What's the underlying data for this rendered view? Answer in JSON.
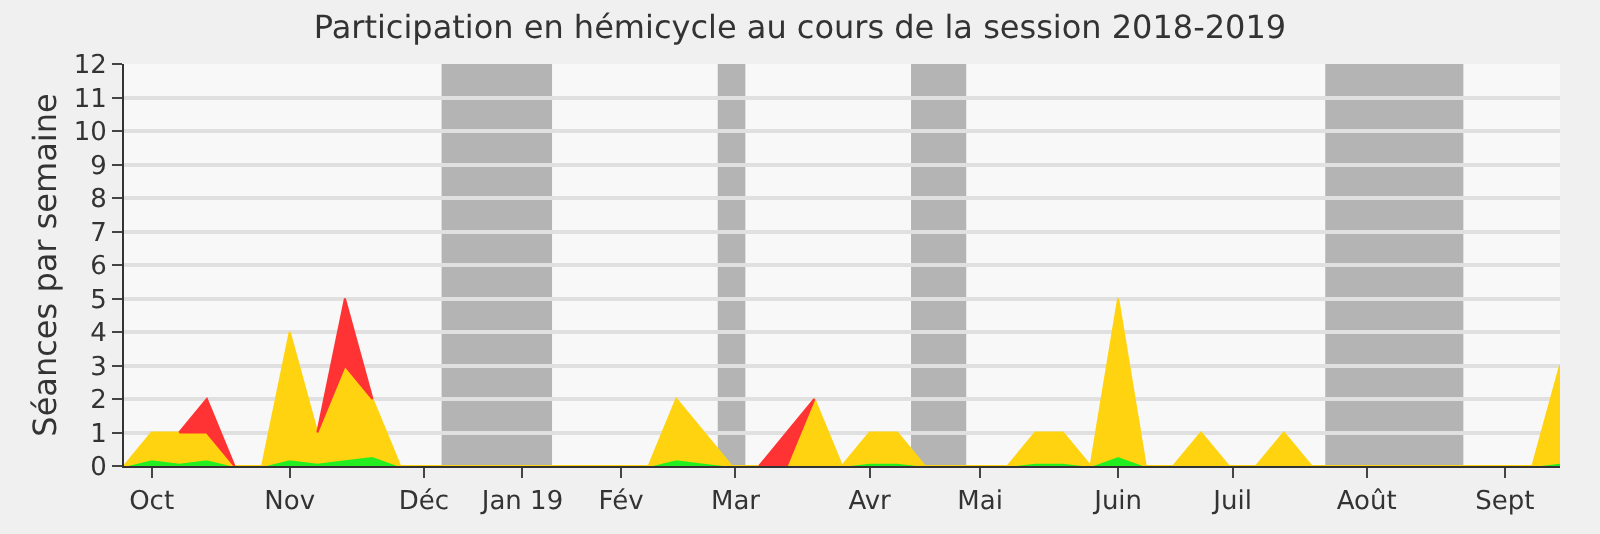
{
  "chart_data": {
    "type": "area",
    "title": "Participation en hémicycle au cours de la session 2018-2019",
    "ylabel": "Séances par semaine",
    "x": [
      "2018-10-01",
      "2018-10-08",
      "2018-10-15",
      "2018-10-22",
      "2018-10-29",
      "2018-11-05",
      "2018-11-12",
      "2018-11-19",
      "2018-11-26",
      "2018-12-03",
      "2018-12-10",
      "2018-12-17",
      "2018-12-24",
      "2018-12-31",
      "2019-01-07",
      "2019-01-14",
      "2019-01-21",
      "2019-01-28",
      "2019-02-04",
      "2019-02-11",
      "2019-02-18",
      "2019-02-25",
      "2019-03-04",
      "2019-03-11",
      "2019-03-18",
      "2019-03-25",
      "2019-04-01",
      "2019-04-08",
      "2019-04-15",
      "2019-04-22",
      "2019-04-29",
      "2019-05-06",
      "2019-05-13",
      "2019-05-20",
      "2019-05-27",
      "2019-06-03",
      "2019-06-10",
      "2019-06-17",
      "2019-06-24",
      "2019-07-01",
      "2019-07-08",
      "2019-07-15",
      "2019-07-22",
      "2019-07-29",
      "2019-08-05",
      "2019-08-12",
      "2019-08-19",
      "2019-08-26",
      "2019-09-02",
      "2019-09-09",
      "2019-09-16",
      "2019-09-23",
      "2019-09-30"
    ],
    "stacked": true,
    "series": [
      {
        "color": "#22ee22",
        "values": [
          0,
          0.2,
          0.1,
          0.2,
          0,
          0,
          0.2,
          0.1,
          0.2,
          0.3,
          0,
          0,
          0,
          0,
          0,
          0,
          0,
          0,
          0,
          0,
          0.2,
          0.1,
          0,
          0,
          0,
          0,
          0,
          0.1,
          0.1,
          0,
          0,
          0,
          0,
          0.1,
          0.1,
          0,
          0.3,
          0,
          0,
          0,
          0,
          0,
          0,
          0,
          0,
          0,
          0,
          0,
          0,
          0,
          0,
          0,
          0.1
        ]
      },
      {
        "color": "#ffd30f",
        "values": [
          0,
          0.8,
          0.9,
          0.8,
          0,
          0,
          3.8,
          0.9,
          2.8,
          1.7,
          0,
          0,
          0,
          0,
          0,
          0,
          0,
          0,
          0,
          0,
          1.8,
          0.9,
          0,
          0,
          0,
          2,
          0,
          0.9,
          0.9,
          0,
          0,
          0,
          0,
          0.9,
          0.9,
          0,
          4.7,
          0,
          0,
          1,
          0,
          0,
          1,
          0,
          0,
          0,
          0,
          0,
          0,
          0,
          0,
          0,
          2.9
        ]
      },
      {
        "color": "#ff3333",
        "values": [
          null,
          null,
          0,
          1,
          0,
          null,
          null,
          0,
          2,
          0,
          null,
          null,
          null,
          null,
          null,
          null,
          null,
          null,
          null,
          null,
          null,
          null,
          null,
          0,
          1,
          0,
          null,
          null,
          null,
          null,
          null,
          null,
          null,
          null,
          null,
          null,
          null,
          null,
          null,
          null,
          null,
          null,
          null,
          null,
          null,
          null,
          null,
          null,
          null,
          null,
          null,
          null,
          null
        ]
      }
    ],
    "xlim": [
      "2018-10-01",
      "2019-09-30"
    ],
    "xticks": [
      {
        "value": "2018-10-08",
        "label": "Oct"
      },
      {
        "value": "2018-11-12",
        "label": "Nov"
      },
      {
        "value": "2018-12-16",
        "label": "Déc"
      },
      {
        "value": "2019-01-10",
        "label": "Jan 19"
      },
      {
        "value": "2019-02-04",
        "label": "Fév"
      },
      {
        "value": "2019-03-05",
        "label": "Mar"
      },
      {
        "value": "2019-04-08",
        "label": "Avr"
      },
      {
        "value": "2019-05-06",
        "label": "Mai"
      },
      {
        "value": "2019-06-10",
        "label": "Juin"
      },
      {
        "value": "2019-07-09",
        "label": "Juil"
      },
      {
        "value": "2019-08-12",
        "label": "Août"
      },
      {
        "value": "2019-09-16",
        "label": "Sept"
      }
    ],
    "ylim": [
      0,
      12
    ],
    "yticks": [
      0,
      1,
      2,
      3,
      4,
      5,
      6,
      7,
      8,
      9,
      10,
      11,
      12
    ],
    "bands": [
      {
        "axis": "x",
        "from": "2018-12-20T12:00",
        "to": "2019-01-17T12:00",
        "color": "#b4b4b4"
      },
      {
        "axis": "x",
        "from": "2019-02-28T12:00",
        "to": "2019-03-07T12:00",
        "color": "#b4b4b4"
      },
      {
        "axis": "x",
        "from": "2019-04-18T12:00",
        "to": "2019-05-02T12:00",
        "color": "#b4b4b4"
      },
      {
        "axis": "x",
        "from": "2019-08-01T12:00",
        "to": "2019-09-05T12:00",
        "color": "#b4b4b4"
      }
    ],
    "grid": "y",
    "marker": "none"
  }
}
